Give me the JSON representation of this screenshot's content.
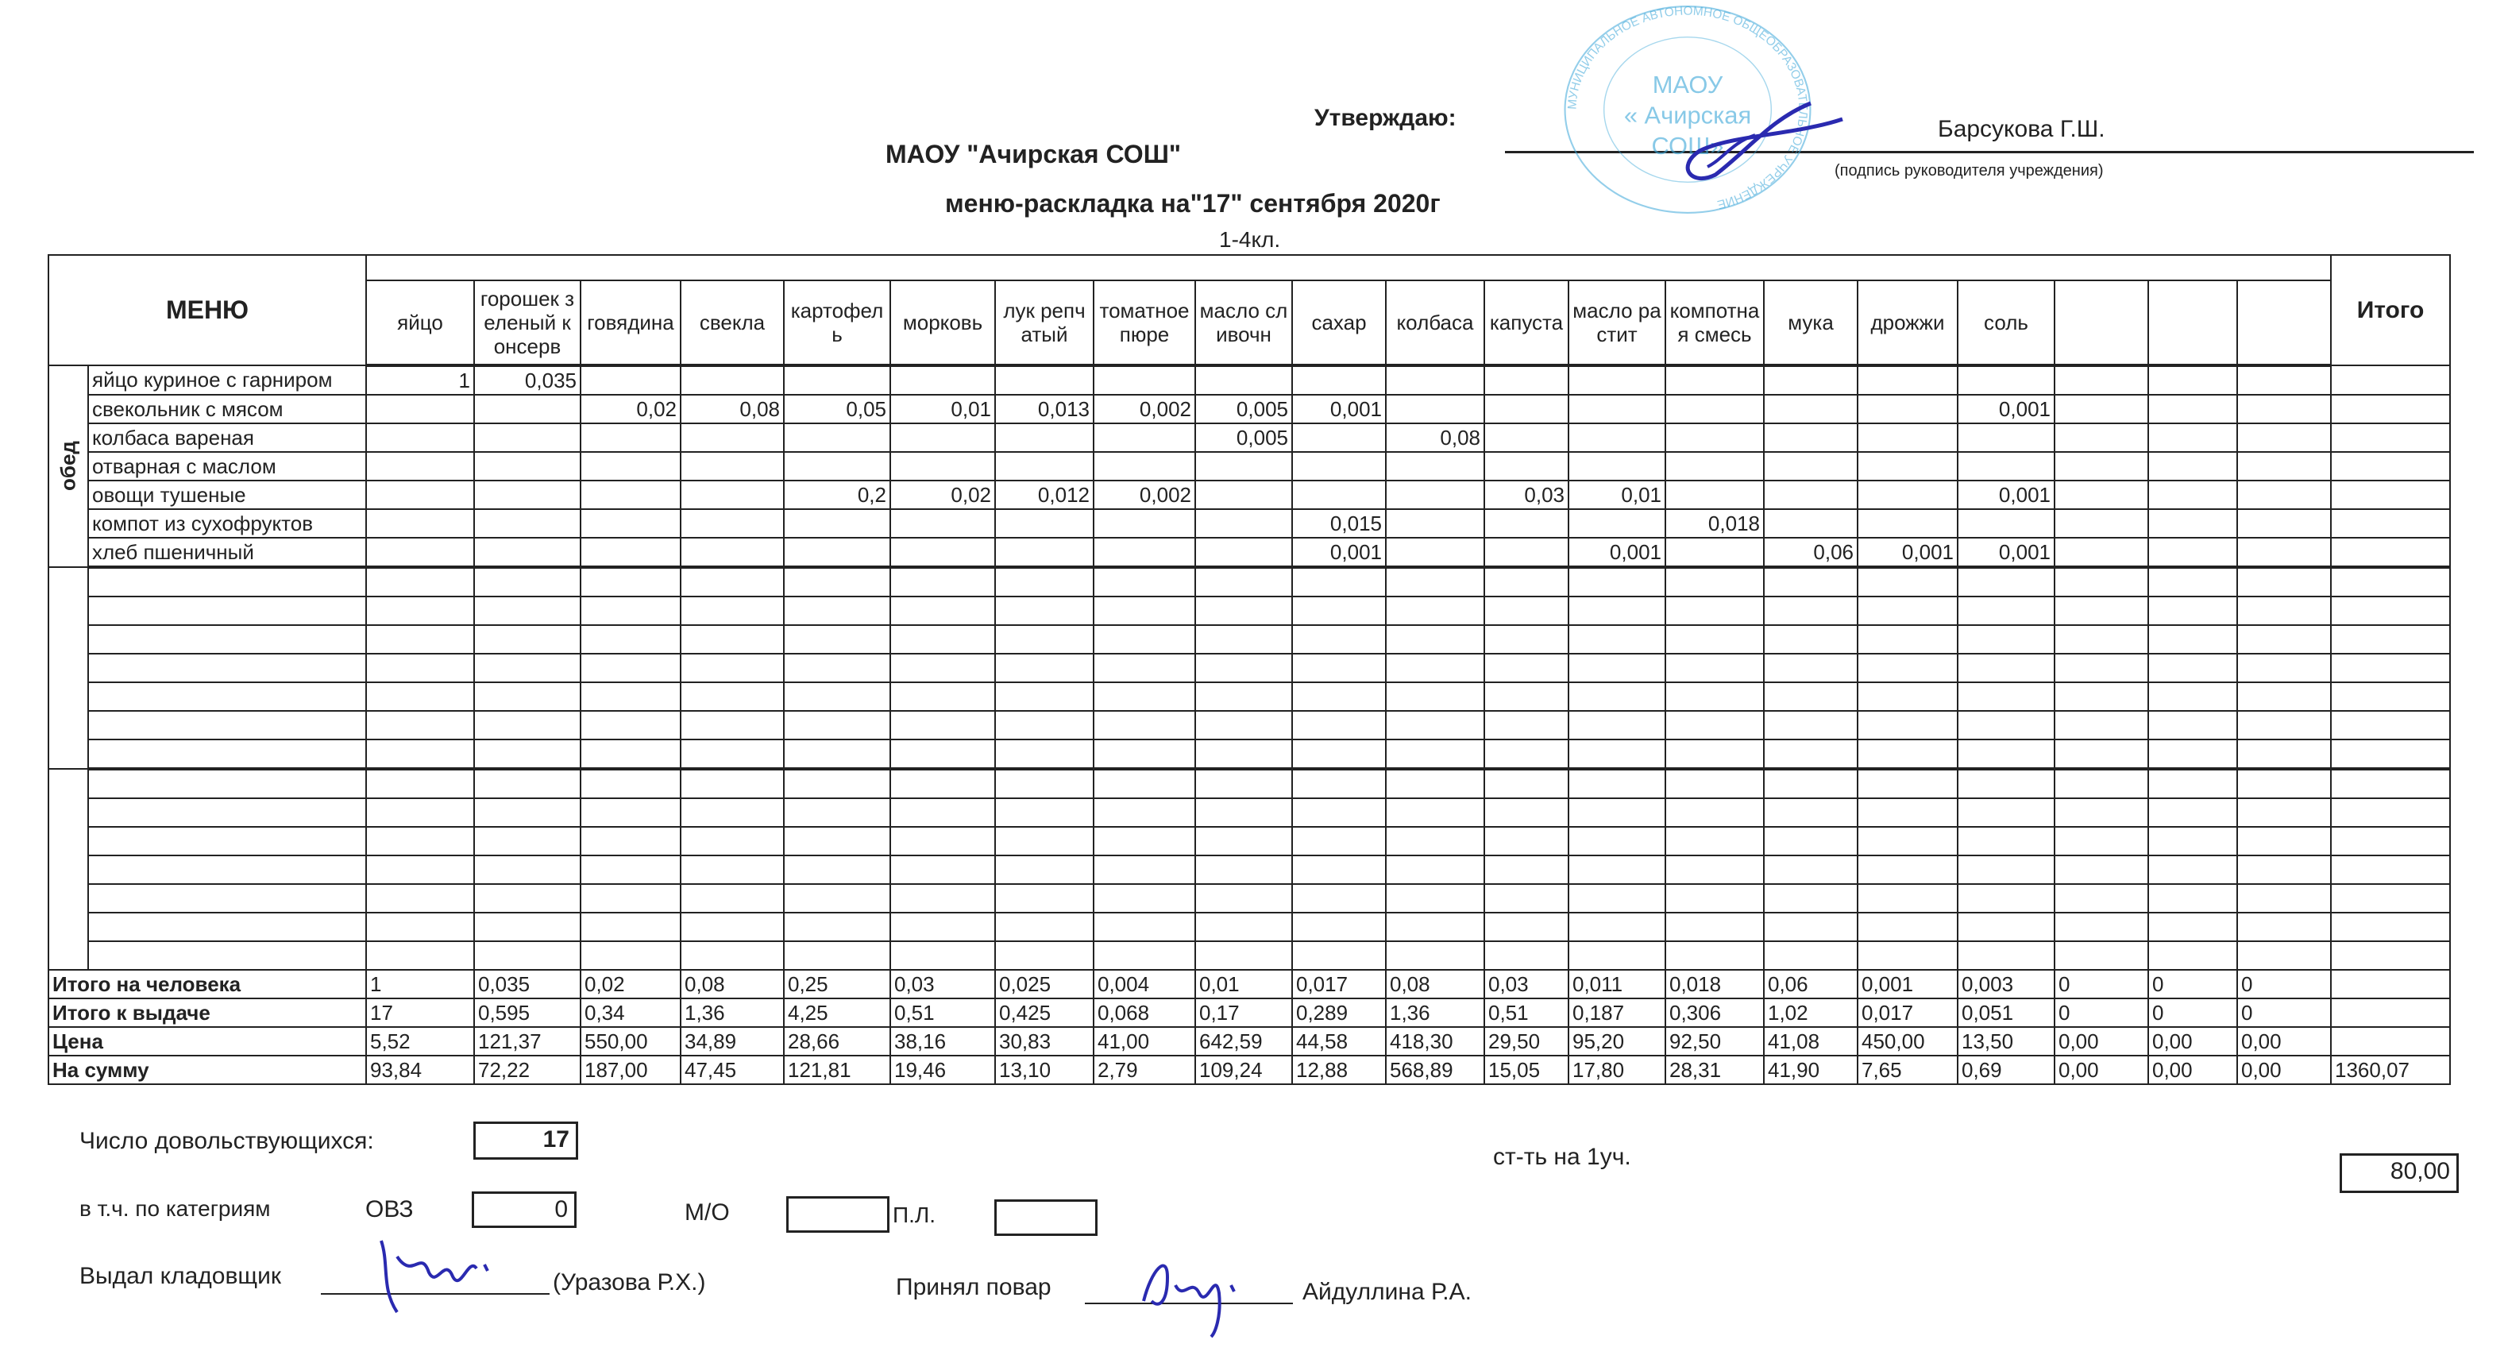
{
  "header": {
    "approve_label": "Утверждаю:",
    "approver_name": "Барсукова Г.Ш.",
    "approve_hint": "(подпись руководителя учреждения)",
    "org_title": "МАОУ \"Ачирская СОШ\"",
    "doc_title": "меню-раскладка на\"17\" сентября 2020г",
    "class_label": "1-4кл."
  },
  "stamp": {
    "ring_text": "МУНИЦИПАЛЬНОЕ АВТОНОМНОЕ ОБЩЕОБРАЗОВАТЕЛЬНОЕ УЧРЕЖДЕНИЕ",
    "center_text": [
      "МАОУ",
      "« Ачирская",
      "СОШ»"
    ],
    "color": "#3aa6d8"
  },
  "signature_color": "#2a2ab0",
  "table": {
    "menu_label": "МЕНЮ",
    "meal_label": "обед",
    "total_label": "Итого",
    "columns": [
      "яйцо",
      "горошек зеленый консерв",
      "говядина",
      "свекла",
      "картофель",
      "морковь",
      "лук репчатый",
      "томатное пюре",
      "масло сливочн",
      "сахар",
      "колбаса",
      "капуста",
      "масло растит",
      "компотная смесь",
      "мука",
      "дрожжи",
      "соль",
      "",
      "",
      ""
    ],
    "dishes": [
      {
        "name": "яйцо куриное с гарниром",
        "values": [
          "1",
          "0,035",
          "",
          "",
          "",
          "",
          "",
          "",
          "",
          "",
          "",
          "",
          "",
          "",
          "",
          "",
          "",
          "",
          "",
          ""
        ]
      },
      {
        "name": "свекольник с мясом",
        "values": [
          "",
          "",
          "0,02",
          "0,08",
          "0,05",
          "0,01",
          "0,013",
          "0,002",
          "0,005",
          "0,001",
          "",
          "",
          "",
          "",
          "",
          "",
          "0,001",
          "",
          "",
          ""
        ]
      },
      {
        "name": "колбаса вареная",
        "values": [
          "",
          "",
          "",
          "",
          "",
          "",
          "",
          "",
          "0,005",
          "",
          "0,08",
          "",
          "",
          "",
          "",
          "",
          "",
          "",
          "",
          ""
        ]
      },
      {
        "name": "отварная с маслом",
        "values": [
          "",
          "",
          "",
          "",
          "",
          "",
          "",
          "",
          "",
          "",
          "",
          "",
          "",
          "",
          "",
          "",
          "",
          "",
          "",
          ""
        ]
      },
      {
        "name": "овощи тушеные",
        "values": [
          "",
          "",
          "",
          "",
          "0,2",
          "0,02",
          "0,012",
          "0,002",
          "",
          "",
          "",
          "0,03",
          "0,01",
          "",
          "",
          "",
          "0,001",
          "",
          "",
          ""
        ]
      },
      {
        "name": "компот из сухофруктов",
        "values": [
          "",
          "",
          "",
          "",
          "",
          "",
          "",
          "",
          "",
          "0,015",
          "",
          "",
          "",
          "0,018",
          "",
          "",
          "",
          "",
          "",
          ""
        ]
      },
      {
        "name": "хлеб пшеничный",
        "values": [
          "",
          "",
          "",
          "",
          "",
          "",
          "",
          "",
          "",
          "0,001",
          "",
          "",
          "0,001",
          "",
          "0,06",
          "0,001",
          "0,001",
          "",
          "",
          ""
        ]
      }
    ],
    "totals": [
      {
        "label": "Итого на человека",
        "values": [
          "1",
          "0,035",
          "0,02",
          "0,08",
          "0,25",
          "0,03",
          "0,025",
          "0,004",
          "0,01",
          "0,017",
          "0,08",
          "0,03",
          "0,011",
          "0,018",
          "0,06",
          "0,001",
          "0,003",
          "0",
          "0",
          "0"
        ],
        "total": ""
      },
      {
        "label": "Итого к выдаче",
        "values": [
          "17",
          "0,595",
          "0,34",
          "1,36",
          "4,25",
          "0,51",
          "0,425",
          "0,068",
          "0,17",
          "0,289",
          "1,36",
          "0,51",
          "0,187",
          "0,306",
          "1,02",
          "0,017",
          "0,051",
          "0",
          "0",
          "0"
        ],
        "total": ""
      },
      {
        "label": "Цена",
        "values": [
          "5,52",
          "121,37",
          "550,00",
          "34,89",
          "28,66",
          "38,16",
          "30,83",
          "41,00",
          "642,59",
          "44,58",
          "418,30",
          "29,50",
          "95,20",
          "92,50",
          "41,08",
          "450,00",
          "13,50",
          "0,00",
          "0,00",
          "0,00"
        ],
        "total": ""
      },
      {
        "label": "На сумму",
        "values": [
          "93,84",
          "72,22",
          "187,00",
          "47,45",
          "121,81",
          "19,46",
          "13,10",
          "2,79",
          "109,24",
          "12,88",
          "568,89",
          "15,05",
          "17,80",
          "28,31",
          "41,90",
          "7,65",
          "0,69",
          "0,00",
          "0,00",
          "0,00"
        ],
        "total": "1360,07"
      }
    ]
  },
  "footer": {
    "eaters_label": "Число довольствующихся:",
    "eaters_value": "17",
    "cost_label": "ст-ть на 1уч.",
    "cost_value": "80,00",
    "categories_label": "в т.ч. по категриям",
    "ovz_label": "ОВЗ",
    "ovz_value": "0",
    "mo_label": "М/О",
    "mo_value": "",
    "pl_label": "П.Л.",
    "pl_value": "",
    "issued_label": "Выдал кладовщик",
    "issued_name": "(Уразова Р.Х.)",
    "received_label": "Принял повар",
    "received_name": "Айдуллина Р.А."
  }
}
